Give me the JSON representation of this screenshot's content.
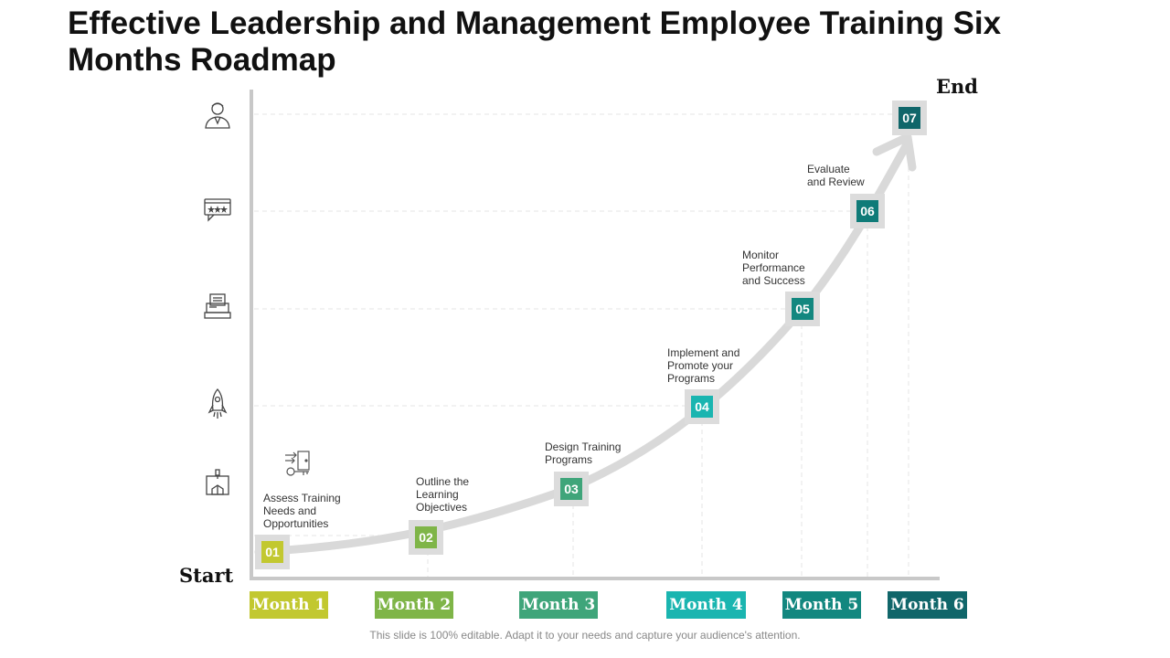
{
  "title": "Effective Leadership and Management Employee Training Six Months Roadmap",
  "start_label": "Start",
  "end_label": "End",
  "steps": [
    {
      "number": "01",
      "label": "Assess Training\nNeeds and\nOpportunities",
      "color": "#c2c830"
    },
    {
      "number": "02",
      "label": "Outline the\nLearning\nObjectives",
      "color": "#7fb548"
    },
    {
      "number": "03",
      "label": "Design Training\nPrograms",
      "color": "#3fa57a"
    },
    {
      "number": "04",
      "label": "Implement and\nPromote your\nPrograms",
      "color": "#1ab5b0"
    },
    {
      "number": "05",
      "label": "Monitor\nPerformance\nand Success",
      "color": "#12877f"
    },
    {
      "number": "06",
      "label": "Evaluate\nand Review",
      "color": "#0f7b78"
    },
    {
      "number": "07",
      "label": "",
      "color": "#10666a"
    }
  ],
  "months": [
    {
      "label": "Month 1",
      "color": "#c2c830"
    },
    {
      "label": "Month 2",
      "color": "#7fb548"
    },
    {
      "label": "Month 3",
      "color": "#3fa57a"
    },
    {
      "label": "Month 4",
      "color": "#1ab5b0"
    },
    {
      "label": "Month 5",
      "color": "#12877f"
    },
    {
      "label": "Month 6",
      "color": "#10666a"
    }
  ],
  "icons": [
    "manager-icon",
    "rating-chat-icon",
    "document-stack-icon",
    "rocket-icon",
    "box-present-icon"
  ],
  "footer": "This slide is 100% editable. Adapt it to your needs and capture your audience's attention."
}
